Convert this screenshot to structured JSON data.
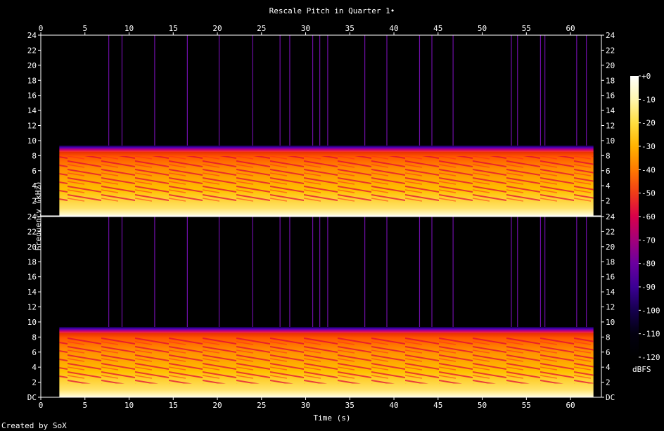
{
  "title": "Rescale Pitch in Quarter 1•",
  "xlabel": "Time (s)",
  "ylabel": "Frequency (kHz)",
  "credit": "Created by SoX",
  "colorbar": {
    "unit": "dBFS",
    "ticks": [
      "+0",
      "-10",
      "-20",
      "-30",
      "-40",
      "-50",
      "-60",
      "-70",
      "-80",
      "-90",
      "-100",
      "-110",
      "-120"
    ],
    "palette": [
      "#ffffff",
      "#fff6b0",
      "#ffdf40",
      "#ffb300",
      "#ff7a00",
      "#f03c18",
      "#d8004a",
      "#a3007a",
      "#6a009f",
      "#3b0095",
      "#15004e",
      "#02000f",
      "#000000"
    ]
  },
  "chart_data": {
    "type": "heatmap",
    "xlim": [
      0,
      63.5
    ],
    "x_ticks": [
      0,
      5,
      10,
      15,
      20,
      25,
      30,
      35,
      40,
      45,
      50,
      55,
      60
    ],
    "ylim": [
      0,
      24
    ],
    "channels": [
      {
        "y_ticks": [
          "24",
          "22",
          "20",
          "18",
          "16",
          "14",
          "12",
          "10",
          "8",
          "6",
          "4",
          "2"
        ]
      },
      {
        "y_ticks": [
          "24",
          "22",
          "20",
          "18",
          "16",
          "14",
          "12",
          "10",
          "8",
          "6",
          "4",
          "2",
          "DC"
        ]
      }
    ],
    "signal": {
      "start_s": 2.1,
      "end_s": 62.6,
      "max_freq_khz": 8.5
    },
    "transients_s": [
      7.7,
      9.2,
      12.9,
      16.6,
      20.2,
      24.0,
      27.1,
      28.2,
      30.8,
      31.6,
      32.5,
      36.7,
      39.2,
      42.9,
      44.3,
      46.7,
      53.3,
      54.0,
      56.6,
      57.1,
      60.7,
      61.8
    ]
  }
}
